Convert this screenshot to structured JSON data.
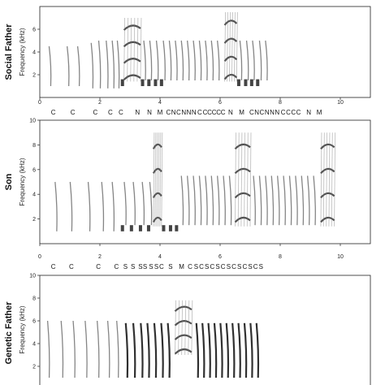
{
  "chart_data": [
    {
      "type": "heatmap",
      "row_label": "Social Father",
      "ylabel": "Frequency (kHz)",
      "xlim": [
        0,
        11
      ],
      "ylim": [
        0,
        8
      ],
      "x_ticks": [
        "0",
        "2",
        "4",
        "6",
        "8",
        "10"
      ],
      "y_ticks": [
        "2",
        "4",
        "6"
      ],
      "note_labels": [
        {
          "text": "C",
          "x": 0.45
        },
        {
          "text": "C",
          "x": 1.1
        },
        {
          "text": "C",
          "x": 1.85
        },
        {
          "text": "C",
          "x": 2.35
        },
        {
          "text": "C",
          "x": 2.7
        },
        {
          "text": "N",
          "x": 3.25
        },
        {
          "text": "N",
          "x": 3.65
        },
        {
          "text": "M",
          "x": 4.0
        },
        {
          "text": "C",
          "x": 4.28
        },
        {
          "text": "N",
          "x": 4.45
        },
        {
          "text": "C",
          "x": 4.62
        },
        {
          "text": "N",
          "x": 4.79
        },
        {
          "text": "N",
          "x": 4.96
        },
        {
          "text": "N",
          "x": 5.13
        },
        {
          "text": "C",
          "x": 5.32
        },
        {
          "text": "C",
          "x": 5.5
        },
        {
          "text": "C",
          "x": 5.65
        },
        {
          "text": "C",
          "x": 5.8
        },
        {
          "text": "C",
          "x": 5.95
        },
        {
          "text": "C",
          "x": 6.1
        },
        {
          "text": "N",
          "x": 6.35
        },
        {
          "text": "M",
          "x": 6.72
        },
        {
          "text": "C",
          "x": 7.05
        },
        {
          "text": "N",
          "x": 7.22
        },
        {
          "text": "C",
          "x": 7.39
        },
        {
          "text": "N",
          "x": 7.56
        },
        {
          "text": "N",
          "x": 7.73
        },
        {
          "text": "N",
          "x": 7.9
        },
        {
          "text": "C",
          "x": 8.1
        },
        {
          "text": "C",
          "x": 8.27
        },
        {
          "text": "C",
          "x": 8.44
        },
        {
          "text": "C",
          "x": 8.61
        },
        {
          "text": "N",
          "x": 8.95
        },
        {
          "text": "M",
          "x": 9.3
        }
      ],
      "elements": [
        {
          "kind": "call",
          "x": 0.35,
          "f_low": 1.0,
          "f_high": 4.5
        },
        {
          "kind": "call",
          "x": 0.95,
          "f_low": 1.0,
          "f_high": 4.5
        },
        {
          "kind": "call",
          "x": 1.3,
          "f_low": 1.0,
          "f_high": 4.5
        },
        {
          "kind": "call",
          "x": 1.75,
          "f_low": 0.8,
          "f_high": 4.8
        },
        {
          "kind": "call",
          "x": 2.0,
          "f_low": 0.8,
          "f_high": 5.0
        },
        {
          "kind": "call",
          "x": 2.25,
          "f_low": 0.8,
          "f_high": 5.0
        },
        {
          "kind": "call",
          "x": 2.45,
          "f_low": 0.8,
          "f_high": 5.0
        },
        {
          "kind": "call",
          "x": 2.62,
          "f_low": 0.8,
          "f_high": 5.0
        },
        {
          "kind": "note",
          "x": 2.75,
          "f_low": 1.0,
          "f_high": 1.6
        },
        {
          "kind": "trill",
          "x_start": 2.8,
          "x_end": 3.35,
          "f_low": 1.4,
          "f_high": 7.0
        },
        {
          "kind": "note",
          "x": 3.42,
          "f_low": 1.0,
          "f_high": 1.6
        },
        {
          "kind": "call",
          "x": 3.5,
          "f_low": 1.5,
          "f_high": 5.0
        },
        {
          "kind": "note",
          "x": 3.63,
          "f_low": 1.0,
          "f_high": 1.6
        },
        {
          "kind": "call",
          "x": 3.7,
          "f_low": 1.5,
          "f_high": 5.0
        },
        {
          "kind": "note",
          "x": 3.85,
          "f_low": 1.0,
          "f_high": 1.6
        },
        {
          "kind": "call",
          "x": 3.92,
          "f_low": 1.5,
          "f_high": 5.0
        },
        {
          "kind": "note",
          "x": 4.05,
          "f_low": 1.0,
          "f_high": 1.6
        },
        {
          "kind": "call",
          "x": 4.15,
          "f_low": 1.5,
          "f_high": 5.0
        },
        {
          "kind": "call",
          "x": 4.35,
          "f_low": 1.5,
          "f_high": 5.0
        },
        {
          "kind": "call",
          "x": 4.55,
          "f_low": 1.5,
          "f_high": 5.0
        },
        {
          "kind": "call",
          "x": 4.75,
          "f_low": 1.5,
          "f_high": 5.0
        },
        {
          "kind": "call",
          "x": 4.95,
          "f_low": 1.5,
          "f_high": 5.0
        },
        {
          "kind": "call",
          "x": 5.15,
          "f_low": 1.5,
          "f_high": 5.0
        },
        {
          "kind": "call",
          "x": 5.35,
          "f_low": 1.5,
          "f_high": 5.0
        },
        {
          "kind": "call",
          "x": 5.55,
          "f_low": 1.5,
          "f_high": 5.0
        },
        {
          "kind": "call",
          "x": 5.75,
          "f_low": 1.5,
          "f_high": 5.0
        },
        {
          "kind": "call",
          "x": 5.95,
          "f_low": 1.5,
          "f_high": 5.0
        },
        {
          "kind": "trill",
          "x_start": 6.15,
          "x_end": 6.55,
          "f_low": 1.4,
          "f_high": 7.5
        },
        {
          "kind": "note",
          "x": 6.62,
          "f_low": 1.0,
          "f_high": 1.6
        },
        {
          "kind": "call",
          "x": 6.7,
          "f_low": 1.5,
          "f_high": 5.0
        },
        {
          "kind": "note",
          "x": 6.85,
          "f_low": 1.0,
          "f_high": 1.6
        },
        {
          "kind": "call",
          "x": 6.92,
          "f_low": 1.5,
          "f_high": 5.0
        },
        {
          "kind": "note",
          "x": 7.05,
          "f_low": 1.0,
          "f_high": 1.6
        },
        {
          "kind": "call",
          "x": 7.12,
          "f_low": 1.5,
          "f_high": 5.0
        },
        {
          "kind": "note",
          "x": 7.25,
          "f_low": 1.0,
          "f_high": 1.6
        },
        {
          "kind": "call",
          "x": 7.35,
          "f_low": 1.5,
          "f_high": 5.0
        },
        {
          "kind": "call",
          "x": 7.55,
          "f_low": 1.5,
          "f_high": 5.0
        }
      ]
    },
    {
      "type": "heatmap",
      "row_label": "Son",
      "ylabel": "Frequency (kHz)",
      "xlim": [
        0,
        11
      ],
      "ylim": [
        0,
        10
      ],
      "x_ticks": [
        "0",
        "2",
        "4",
        "6",
        "8",
        "10"
      ],
      "y_ticks": [
        "2",
        "4",
        "6",
        "8",
        "10"
      ],
      "note_labels": [
        {
          "text": "C",
          "x": 0.45
        },
        {
          "text": "C",
          "x": 1.05
        },
        {
          "text": "C",
          "x": 1.95
        },
        {
          "text": "C",
          "x": 2.55
        },
        {
          "text": "S",
          "x": 2.85
        },
        {
          "text": "S",
          "x": 3.1
        },
        {
          "text": "S",
          "x": 3.35
        },
        {
          "text": "S",
          "x": 3.5
        },
        {
          "text": "S",
          "x": 3.7
        },
        {
          "text": "S",
          "x": 3.88
        },
        {
          "text": "C",
          "x": 4.05
        },
        {
          "text": "S",
          "x": 4.35
        },
        {
          "text": "M",
          "x": 4.72
        },
        {
          "text": "C",
          "x": 5.0
        },
        {
          "text": "S",
          "x": 5.2
        },
        {
          "text": "C",
          "x": 5.38
        },
        {
          "text": "S",
          "x": 5.56
        },
        {
          "text": "C",
          "x": 5.74
        },
        {
          "text": "S",
          "x": 5.92
        },
        {
          "text": "C",
          "x": 6.1
        },
        {
          "text": "S",
          "x": 6.28
        },
        {
          "text": "C",
          "x": 6.46
        },
        {
          "text": "S",
          "x": 6.64
        },
        {
          "text": "C",
          "x": 6.82
        },
        {
          "text": "S",
          "x": 7.0
        },
        {
          "text": "C",
          "x": 7.18
        },
        {
          "text": "S",
          "x": 7.36
        }
      ],
      "elements": [
        {
          "kind": "call",
          "x": 0.55,
          "f_low": 1.0,
          "f_high": 5.0
        },
        {
          "kind": "call",
          "x": 1.05,
          "f_low": 1.0,
          "f_high": 5.0
        },
        {
          "kind": "call",
          "x": 1.65,
          "f_low": 1.0,
          "f_high": 5.0
        },
        {
          "kind": "call",
          "x": 2.1,
          "f_low": 1.0,
          "f_high": 5.0
        },
        {
          "kind": "call",
          "x": 2.45,
          "f_low": 1.0,
          "f_high": 5.0
        },
        {
          "kind": "note",
          "x": 2.75,
          "f_low": 1.0,
          "f_high": 1.5
        },
        {
          "kind": "call",
          "x": 2.85,
          "f_low": 1.5,
          "f_high": 5.0
        },
        {
          "kind": "note",
          "x": 3.05,
          "f_low": 1.0,
          "f_high": 1.5
        },
        {
          "kind": "call",
          "x": 3.15,
          "f_low": 1.5,
          "f_high": 5.0
        },
        {
          "kind": "note",
          "x": 3.35,
          "f_low": 1.0,
          "f_high": 1.5
        },
        {
          "kind": "call",
          "x": 3.45,
          "f_low": 1.5,
          "f_high": 5.0
        },
        {
          "kind": "note",
          "x": 3.62,
          "f_low": 1.0,
          "f_high": 1.5
        },
        {
          "kind": "call",
          "x": 3.7,
          "f_low": 1.5,
          "f_high": 5.0
        },
        {
          "kind": "trill",
          "x_start": 3.78,
          "x_end": 4.05,
          "f_low": 1.4,
          "f_high": 9.0
        },
        {
          "kind": "note",
          "x": 4.12,
          "f_low": 1.0,
          "f_high": 1.5
        },
        {
          "kind": "note",
          "x": 4.35,
          "f_low": 1.0,
          "f_high": 1.5
        },
        {
          "kind": "note",
          "x": 4.55,
          "f_low": 1.0,
          "f_high": 1.5
        },
        {
          "kind": "call",
          "x": 4.75,
          "f_low": 1.5,
          "f_high": 5.5
        },
        {
          "kind": "call",
          "x": 4.95,
          "f_low": 1.5,
          "f_high": 5.5
        },
        {
          "kind": "call",
          "x": 5.15,
          "f_low": 1.5,
          "f_high": 5.5
        },
        {
          "kind": "call",
          "x": 5.35,
          "f_low": 1.5,
          "f_high": 5.5
        },
        {
          "kind": "call",
          "x": 5.55,
          "f_low": 1.5,
          "f_high": 5.5
        },
        {
          "kind": "call",
          "x": 5.75,
          "f_low": 1.5,
          "f_high": 5.5
        },
        {
          "kind": "call",
          "x": 5.95,
          "f_low": 1.5,
          "f_high": 5.5
        },
        {
          "kind": "call",
          "x": 6.15,
          "f_low": 1.5,
          "f_high": 5.5
        },
        {
          "kind": "call",
          "x": 6.35,
          "f_low": 1.5,
          "f_high": 5.5
        },
        {
          "kind": "trill",
          "x_start": 6.5,
          "x_end": 7.0,
          "f_low": 1.4,
          "f_high": 9.0
        },
        {
          "kind": "call",
          "x": 7.15,
          "f_low": 1.5,
          "f_high": 5.5
        },
        {
          "kind": "call",
          "x": 7.35,
          "f_low": 1.5,
          "f_high": 5.5
        },
        {
          "kind": "call",
          "x": 7.55,
          "f_low": 1.5,
          "f_high": 5.5
        },
        {
          "kind": "call",
          "x": 7.75,
          "f_low": 1.5,
          "f_high": 5.5
        },
        {
          "kind": "call",
          "x": 7.95,
          "f_low": 1.5,
          "f_high": 5.5
        },
        {
          "kind": "call",
          "x": 8.15,
          "f_low": 1.5,
          "f_high": 5.5
        },
        {
          "kind": "call",
          "x": 8.35,
          "f_low": 1.5,
          "f_high": 5.5
        },
        {
          "kind": "call",
          "x": 8.55,
          "f_low": 1.5,
          "f_high": 5.5
        },
        {
          "kind": "call",
          "x": 8.75,
          "f_low": 1.5,
          "f_high": 5.5
        },
        {
          "kind": "call",
          "x": 8.95,
          "f_low": 1.5,
          "f_high": 5.5
        },
        {
          "kind": "call",
          "x": 9.15,
          "f_low": 1.5,
          "f_high": 5.5
        },
        {
          "kind": "trill",
          "x_start": 9.35,
          "x_end": 9.8,
          "f_low": 1.4,
          "f_high": 9.0
        }
      ]
    },
    {
      "type": "heatmap",
      "row_label": "Genetic Father",
      "ylabel": "Frequency (kHz)",
      "xlim": [
        0,
        11
      ],
      "ylim": [
        0,
        10
      ],
      "x_ticks": [],
      "y_ticks": [
        "2",
        "4",
        "6",
        "8",
        "10"
      ],
      "note_labels": [],
      "elements": [
        {
          "kind": "call",
          "x": 0.3,
          "f_low": 1.0,
          "f_high": 6.0
        },
        {
          "kind": "call",
          "x": 0.75,
          "f_low": 1.0,
          "f_high": 6.0
        },
        {
          "kind": "call",
          "x": 1.15,
          "f_low": 1.0,
          "f_high": 6.0
        },
        {
          "kind": "call",
          "x": 1.55,
          "f_low": 1.0,
          "f_high": 6.0
        },
        {
          "kind": "call",
          "x": 1.95,
          "f_low": 1.0,
          "f_high": 6.0
        },
        {
          "kind": "call",
          "x": 2.3,
          "f_low": 1.0,
          "f_high": 6.0
        },
        {
          "kind": "call",
          "x": 2.6,
          "f_low": 1.0,
          "f_high": 6.0
        },
        {
          "kind": "shaped",
          "x": 2.9,
          "f_low": 1.0,
          "f_high": 5.8
        },
        {
          "kind": "shaped",
          "x": 3.15,
          "f_low": 1.0,
          "f_high": 5.8
        },
        {
          "kind": "shaped",
          "x": 3.4,
          "f_low": 1.0,
          "f_high": 5.8
        },
        {
          "kind": "shaped",
          "x": 3.62,
          "f_low": 1.0,
          "f_high": 5.8
        },
        {
          "kind": "shaped",
          "x": 3.85,
          "f_low": 1.0,
          "f_high": 5.8
        },
        {
          "kind": "shaped",
          "x": 4.08,
          "f_low": 1.0,
          "f_high": 5.8
        },
        {
          "kind": "shaped",
          "x": 4.3,
          "f_low": 1.0,
          "f_high": 5.8
        },
        {
          "kind": "trill",
          "x_start": 4.5,
          "x_end": 5.05,
          "f_low": 3.0,
          "f_high": 7.8
        },
        {
          "kind": "shaped",
          "x": 5.25,
          "f_low": 1.0,
          "f_high": 5.8
        },
        {
          "kind": "shaped",
          "x": 5.45,
          "f_low": 1.0,
          "f_high": 5.8
        },
        {
          "kind": "shaped",
          "x": 5.65,
          "f_low": 1.0,
          "f_high": 5.8
        },
        {
          "kind": "shaped",
          "x": 5.85,
          "f_low": 1.0,
          "f_high": 5.8
        },
        {
          "kind": "shaped",
          "x": 6.05,
          "f_low": 1.0,
          "f_high": 5.8
        },
        {
          "kind": "shaped",
          "x": 6.25,
          "f_low": 1.0,
          "f_high": 5.8
        },
        {
          "kind": "shaped",
          "x": 6.45,
          "f_low": 1.0,
          "f_high": 5.8
        },
        {
          "kind": "shaped",
          "x": 6.65,
          "f_low": 1.0,
          "f_high": 5.8
        },
        {
          "kind": "shaped",
          "x": 6.85,
          "f_low": 1.0,
          "f_high": 5.8
        },
        {
          "kind": "shaped",
          "x": 7.05,
          "f_low": 1.0,
          "f_high": 5.8
        },
        {
          "kind": "shaped",
          "x": 7.25,
          "f_low": 1.0,
          "f_high": 5.8
        }
      ]
    }
  ]
}
